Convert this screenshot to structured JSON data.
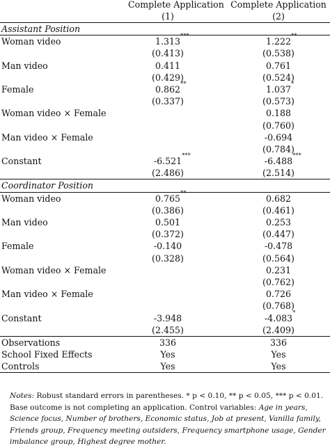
{
  "header": {
    "col1_title": "Complete Application",
    "col1_num": "(1)",
    "col2_title": "Complete Application",
    "col2_num": "(2)"
  },
  "panels": [
    {
      "title": "Assistant Position",
      "rows": [
        {
          "label": "Woman video",
          "c1": "1.313",
          "c1_stars": "***",
          "c2": "1.222",
          "c2_stars": "**",
          "se1": "(0.413)",
          "se2": "(0.538)"
        },
        {
          "label": "Man video",
          "c1": "0.411",
          "c1_stars": "",
          "c2": "0.761",
          "c2_stars": "",
          "se1": "(0.429)",
          "se2": "(0.524)"
        },
        {
          "label": "Female",
          "c1": "0.862",
          "c1_stars": "**",
          "c2": "1.037",
          "c2_stars": "*",
          "se1": "(0.337)",
          "se2": "(0.573)"
        },
        {
          "label": "Woman video × Female",
          "c1": "",
          "c1_stars": "",
          "c2": "0.188",
          "c2_stars": "",
          "se1": "",
          "se2": "(0.760)"
        },
        {
          "label": "Man video × Female",
          "c1": "",
          "c1_stars": "",
          "c2": "-0.694",
          "c2_stars": "",
          "se1": "",
          "se2": "(0.784)"
        },
        {
          "label": "Constant",
          "c1": "-6.521",
          "c1_stars": "***",
          "c2": "-6.488",
          "c2_stars": "***",
          "se1": "(2.486)",
          "se2": "(2.514)"
        }
      ]
    },
    {
      "title": "Coordinator Position",
      "rows": [
        {
          "label": "Woman video",
          "c1": "0.765",
          "c1_stars": "**",
          "c2": "0.682",
          "c2_stars": "",
          "se1": "(0.386)",
          "se2": "(0.461)"
        },
        {
          "label": "Man video",
          "c1": "0.501",
          "c1_stars": "",
          "c2": "0.253",
          "c2_stars": "",
          "se1": "(0.372)",
          "se2": "(0.447)"
        },
        {
          "label": "Female",
          "c1": "-0.140",
          "c1_stars": "",
          "c2": "-0.478",
          "c2_stars": "",
          "se1": "(0.328)",
          "se2": "(0.564)"
        },
        {
          "label": "Woman video × Female",
          "c1": "",
          "c1_stars": "",
          "c2": "0.231",
          "c2_stars": "",
          "se1": "",
          "se2": "(0.762)"
        },
        {
          "label": "Man video × Female",
          "c1": "",
          "c1_stars": "",
          "c2": "0.726",
          "c2_stars": "",
          "se1": "",
          "se2": "(0.768)"
        },
        {
          "label": "Constant",
          "c1": "-3.948",
          "c1_stars": "",
          "c2": "-4.083",
          "c2_stars": "*",
          "se1": "(2.455)",
          "se2": "(2.409)"
        }
      ]
    }
  ],
  "footer_rows": [
    {
      "label": "Observations",
      "c1": "336",
      "c2": "336"
    },
    {
      "label": "School Fixed Effects",
      "c1": "Yes",
      "c2": "Yes"
    },
    {
      "label": "Controls",
      "c1": "Yes",
      "c2": "Yes"
    }
  ],
  "notes": {
    "prefix": "Notes:",
    "line1_rest": " Robust standard errors in parentheses. * p < 0.10, ** p < 0.05, *** p < 0.01.",
    "line2_plain": "Base outcome is not completing an application. Control variables: ",
    "controls": "Age in years, Science focus, Number of brothers, Economic status, Job at present, Vanilla family, Friends group, Frequency meeting outsiders, Frequency smartphone usage, Gender imbalance group, Highest degree mother."
  }
}
